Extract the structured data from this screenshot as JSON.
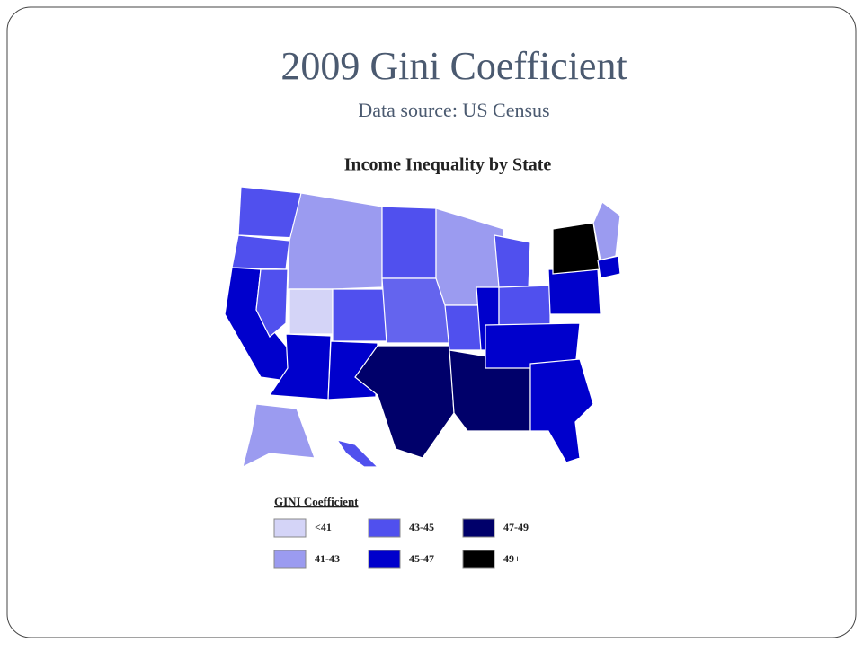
{
  "slide": {
    "title": "2009 Gini Coefficient",
    "subtitle": "Data source:  US Census",
    "map": {
      "title": "Income Inequality by State",
      "legend": {
        "title": "GINI Coefficient",
        "items": [
          {
            "label": "<41",
            "color": "#d4d4f7"
          },
          {
            "label": "41-43",
            "color": "#9b9bf0"
          },
          {
            "label": "43-45",
            "color": "#5050ee"
          },
          {
            "label": "45-47",
            "color": "#0000cc"
          },
          {
            "label": "47-49",
            "color": "#00006a"
          },
          {
            "label": "49+",
            "color": "#000000"
          }
        ]
      }
    }
  }
}
